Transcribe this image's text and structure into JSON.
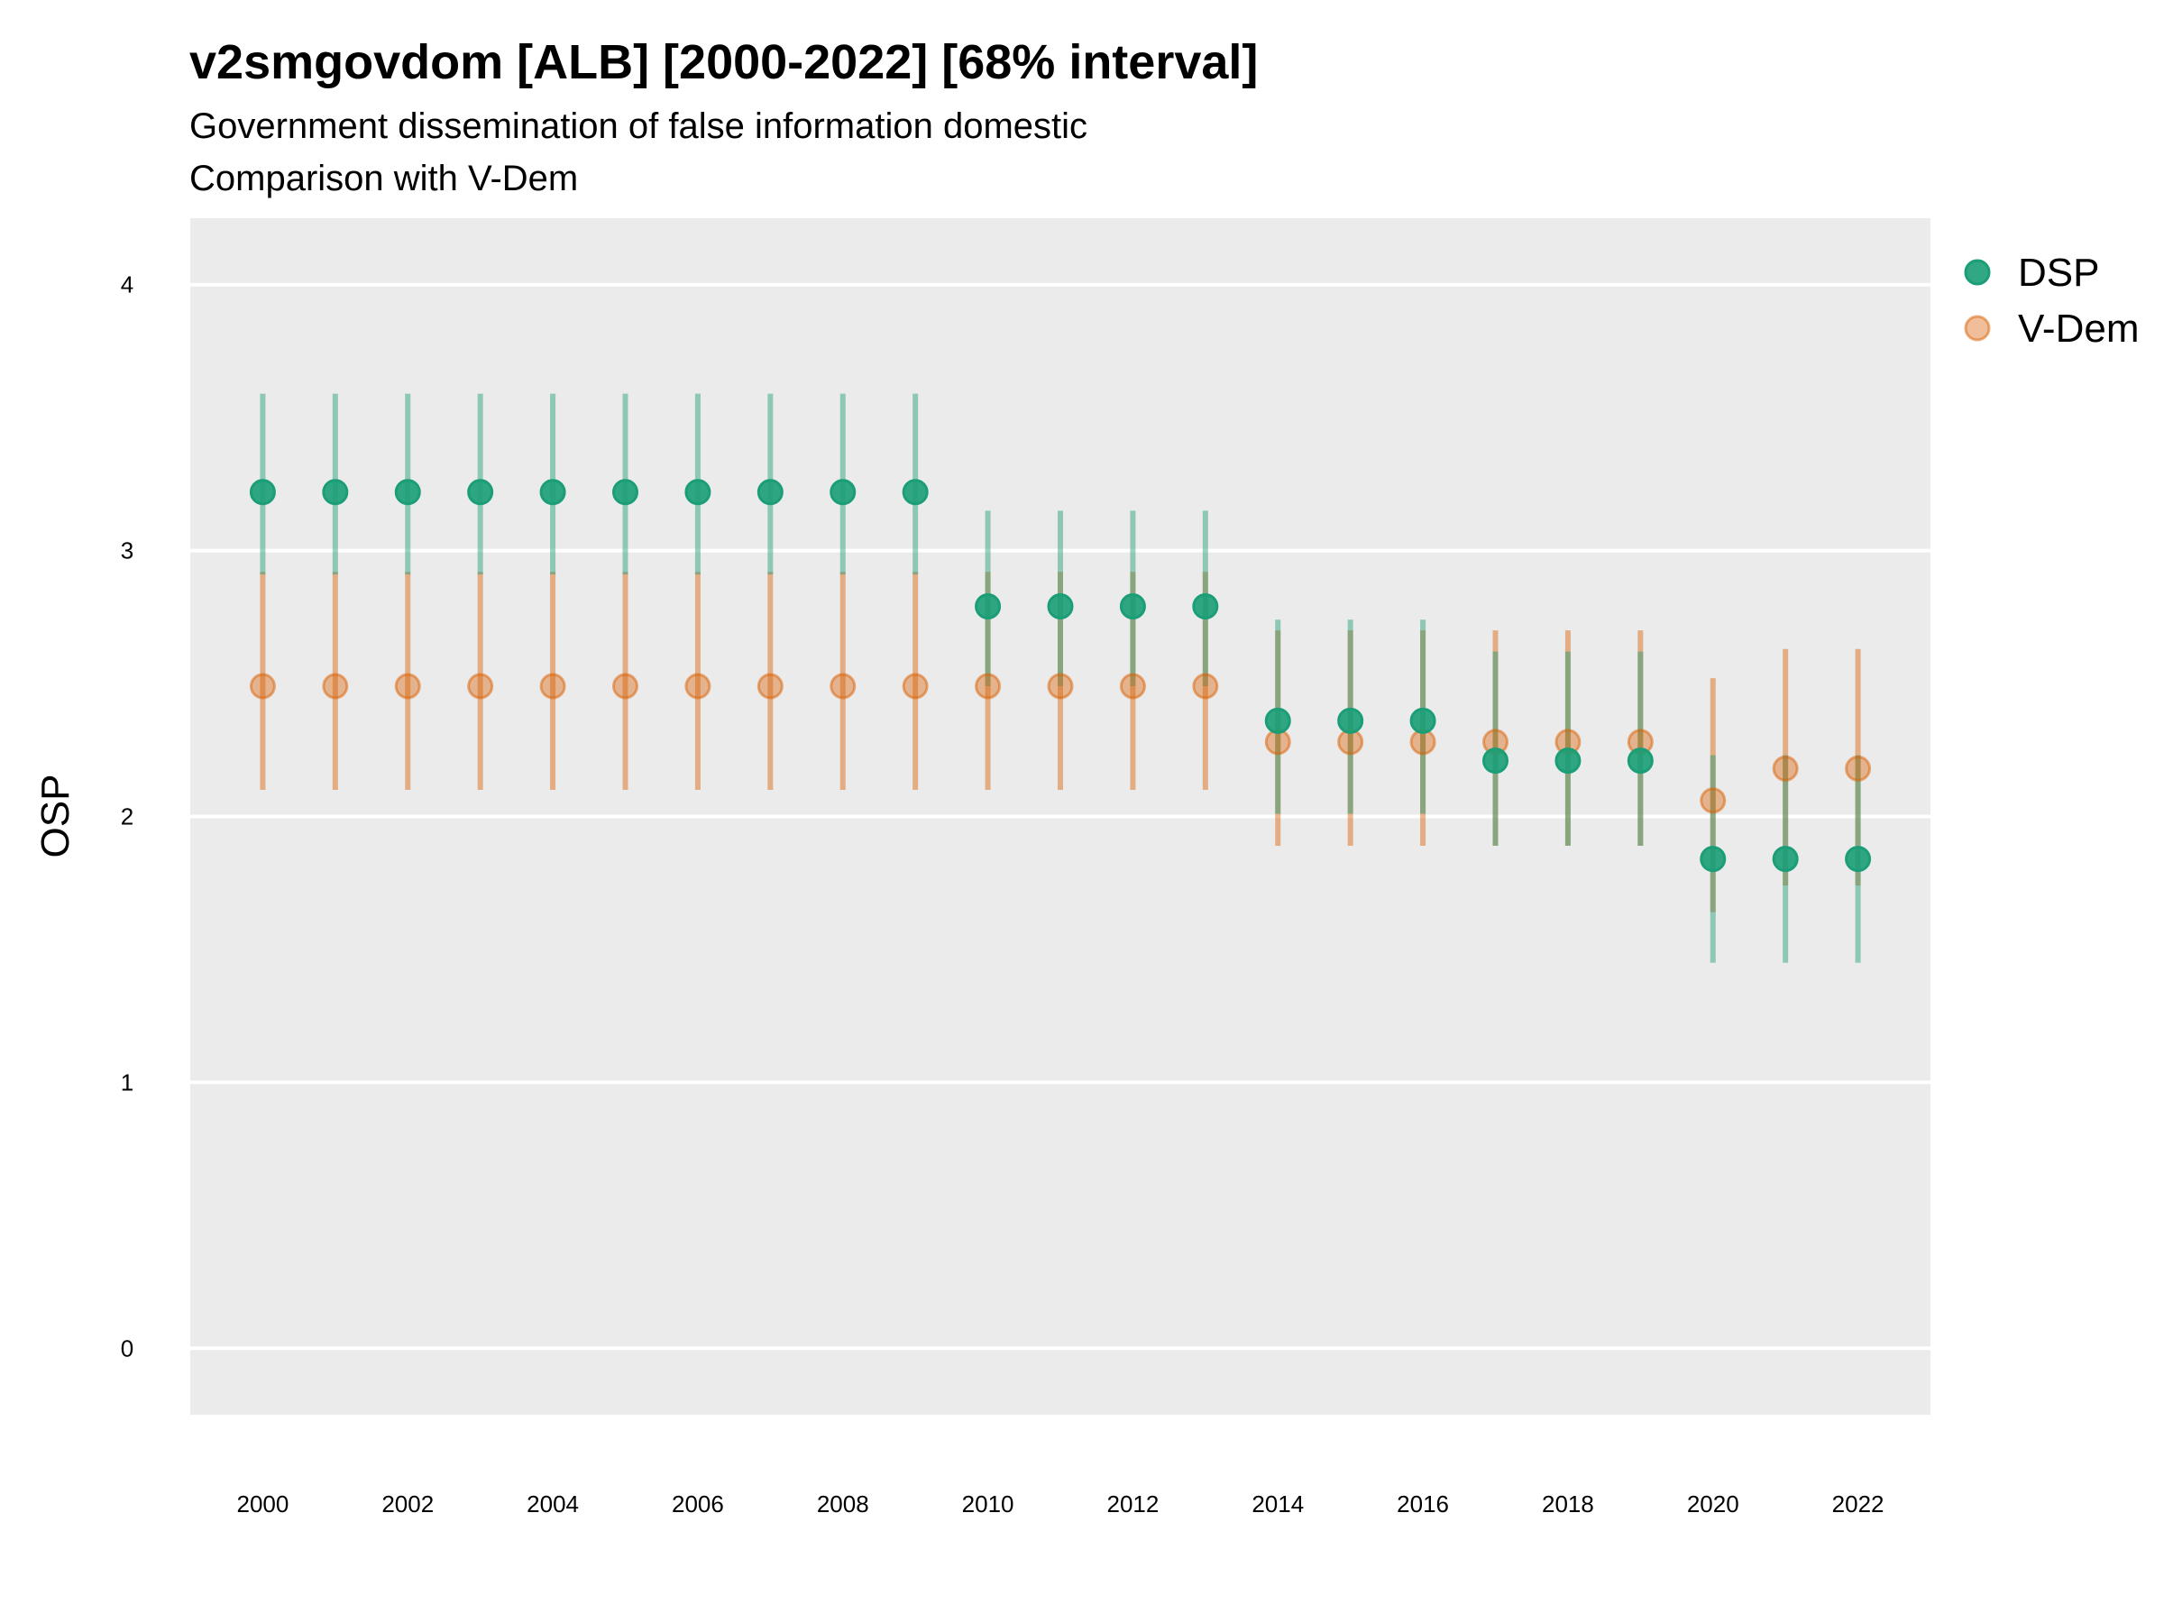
{
  "header": {
    "title": "v2smgovdom [ALB] [2000-2022] [68% interval]",
    "subtitle_line1": "Government dissemination of false information domestic",
    "subtitle_line2": "Comparison with V-Dem"
  },
  "chart_data": {
    "type": "scatter",
    "title": "v2smgovdom [ALB] [2000-2022] [68% interval]",
    "subtitle": "Government dissemination of false information domestic / Comparison with V-Dem",
    "xlabel": "",
    "ylabel": "OSP",
    "xlim": [
      1999,
      2023
    ],
    "ylim": [
      -0.25,
      4.25
    ],
    "x_ticks": [
      2000,
      2002,
      2004,
      2006,
      2008,
      2010,
      2012,
      2014,
      2016,
      2018,
      2020,
      2022
    ],
    "y_ticks": [
      0,
      1,
      2,
      3,
      4
    ],
    "grid": true,
    "legend_position": "right",
    "x": [
      2000,
      2001,
      2002,
      2003,
      2004,
      2005,
      2006,
      2007,
      2008,
      2009,
      2010,
      2011,
      2012,
      2013,
      2014,
      2015,
      2016,
      2017,
      2018,
      2019,
      2020,
      2021,
      2022
    ],
    "series": [
      {
        "name": "DSP",
        "color": "#1b9e77",
        "values": [
          3.22,
          3.22,
          3.22,
          3.22,
          3.22,
          3.22,
          3.22,
          3.22,
          3.22,
          3.22,
          2.79,
          2.79,
          2.79,
          2.79,
          2.36,
          2.36,
          2.36,
          2.21,
          2.21,
          2.21,
          1.84,
          1.84,
          1.84
        ],
        "lower": [
          2.91,
          2.91,
          2.91,
          2.91,
          2.91,
          2.91,
          2.91,
          2.91,
          2.91,
          2.91,
          2.49,
          2.49,
          2.49,
          2.49,
          2.01,
          2.01,
          2.01,
          1.89,
          1.89,
          1.89,
          1.45,
          1.45,
          1.45
        ],
        "upper": [
          3.59,
          3.59,
          3.59,
          3.59,
          3.59,
          3.59,
          3.59,
          3.59,
          3.59,
          3.59,
          3.15,
          3.15,
          3.15,
          3.15,
          2.74,
          2.74,
          2.74,
          2.62,
          2.62,
          2.62,
          2.23,
          2.23,
          2.23
        ]
      },
      {
        "name": "V-Dem",
        "color": "#d95f02",
        "values": [
          2.49,
          2.49,
          2.49,
          2.49,
          2.49,
          2.49,
          2.49,
          2.49,
          2.49,
          2.49,
          2.49,
          2.49,
          2.49,
          2.49,
          2.28,
          2.28,
          2.28,
          2.28,
          2.28,
          2.28,
          2.06,
          2.18,
          2.18
        ],
        "lower": [
          2.1,
          2.1,
          2.1,
          2.1,
          2.1,
          2.1,
          2.1,
          2.1,
          2.1,
          2.1,
          2.1,
          2.1,
          2.1,
          2.1,
          1.89,
          1.89,
          1.89,
          1.89,
          1.89,
          1.89,
          1.64,
          1.74,
          1.74
        ],
        "upper": [
          2.92,
          2.92,
          2.92,
          2.92,
          2.92,
          2.92,
          2.92,
          2.92,
          2.92,
          2.92,
          2.92,
          2.92,
          2.92,
          2.92,
          2.7,
          2.7,
          2.7,
          2.7,
          2.7,
          2.7,
          2.52,
          2.63,
          2.63
        ]
      }
    ]
  }
}
